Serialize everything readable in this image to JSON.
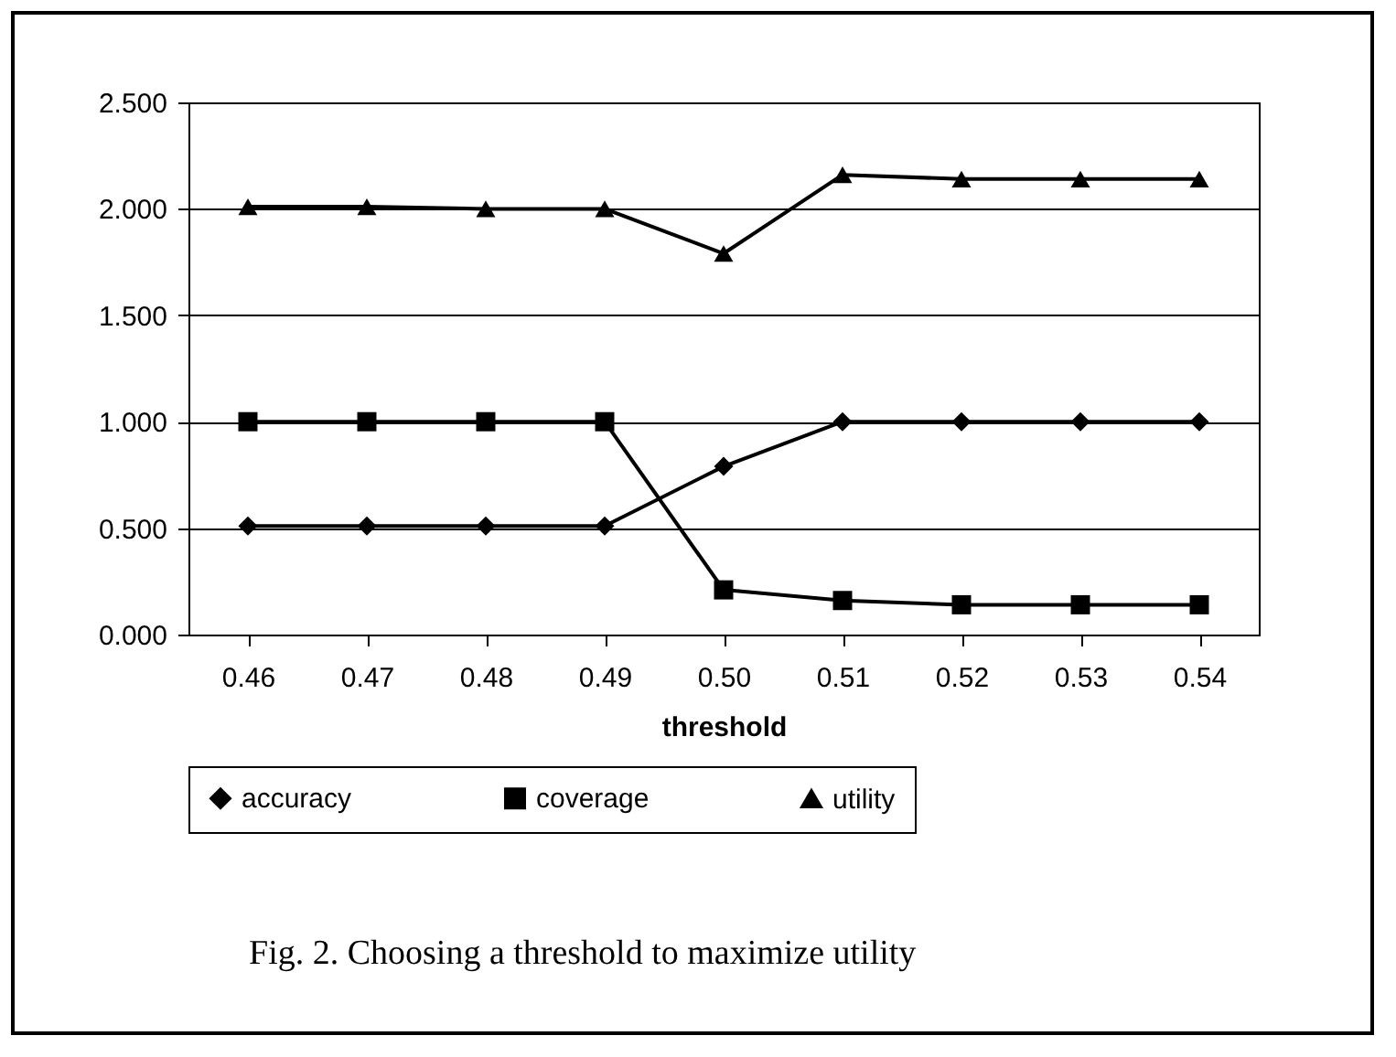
{
  "chart_data": {
    "type": "line",
    "xlabel": "threshold",
    "categories": [
      "0.46",
      "0.47",
      "0.48",
      "0.49",
      "0.50",
      "0.51",
      "0.52",
      "0.53",
      "0.54"
    ],
    "series": [
      {
        "name": "accuracy",
        "color": "#000000",
        "marker": "diamond",
        "values": [
          0.51,
          0.51,
          0.51,
          0.51,
          0.79,
          1.0,
          1.0,
          1.0,
          1.0
        ]
      },
      {
        "name": "coverage",
        "color": "#000000",
        "marker": "square",
        "values": [
          1.0,
          1.0,
          1.0,
          1.0,
          0.21,
          0.16,
          0.14,
          0.14,
          0.14
        ]
      },
      {
        "name": "utility",
        "color": "#000000",
        "marker": "triangle",
        "values": [
          2.01,
          2.01,
          2.0,
          2.0,
          1.79,
          2.16,
          2.14,
          2.14,
          2.14
        ]
      }
    ],
    "ylim": [
      0,
      2.5
    ],
    "yticks": [
      {
        "value": 0,
        "label": "0.000"
      },
      {
        "value": 0.5,
        "label": "0.500"
      },
      {
        "value": 1,
        "label": "1.000"
      },
      {
        "value": 1.5,
        "label": "1.500"
      },
      {
        "value": 2,
        "label": "2.000"
      },
      {
        "value": 2.5,
        "label": "2.500"
      }
    ],
    "grid": "y",
    "legend": "bottom",
    "line_style": "solid",
    "annotations": [
      "Fig. 2. Choosing a threshold to maximize utility"
    ]
  }
}
